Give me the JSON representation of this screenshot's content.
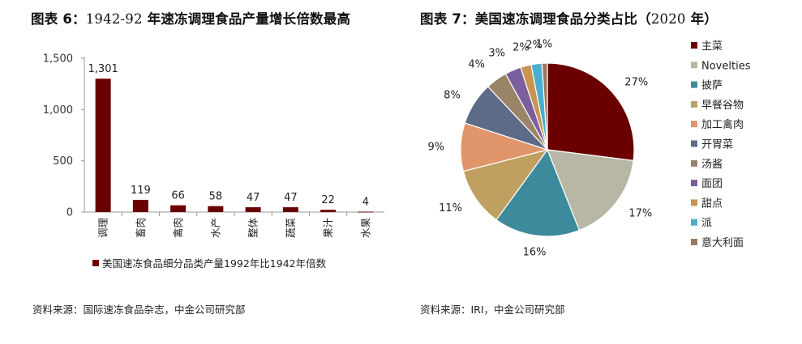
{
  "left": {
    "title_prefix": "图表 6：",
    "title_range": "1942-92",
    "title_text": " 年速冻调理食品产量增长倍数最高",
    "source": "资料来源：国际速冻食品杂志，中金公司研究部"
  },
  "right": {
    "title_prefix": "图表 7：",
    "title_text": "美国速冻调理食品分类占比（",
    "title_year": "2020",
    "title_suffix": " 年）",
    "source": "资料来源：IRI，中金公司研究部"
  },
  "chart_data": [
    {
      "type": "bar",
      "categories": [
        "调理",
        "畜肉",
        "禽肉",
        "水产",
        "整体",
        "蔬菜",
        "果汁",
        "水果"
      ],
      "series": [
        {
          "name": "美国速冻食品细分品类产量1992年比1942年倍数",
          "values": [
            1301,
            119,
            66,
            58,
            47,
            47,
            22,
            4
          ]
        }
      ],
      "data_labels": [
        "1,301",
        "119",
        "66",
        "58",
        "47",
        "47",
        "22",
        "4"
      ],
      "ylim": [
        0,
        1500
      ],
      "yticks": [
        0,
        500,
        1000,
        1500
      ],
      "ytick_labels": [
        "0",
        "500",
        "1,000",
        "1,500"
      ],
      "legend_position": "bottom",
      "bar_color": "#6b0000",
      "grid": false
    },
    {
      "type": "pie",
      "labels": [
        "主菜",
        "Novelties",
        "披萨",
        "早餐谷物",
        "加工禽肉",
        "开胃菜",
        "汤酱",
        "面团",
        "甜点",
        "派",
        "意大利面"
      ],
      "values": [
        27,
        17,
        16,
        11,
        9,
        8,
        4,
        3,
        2,
        2,
        1
      ],
      "value_labels": [
        "27%",
        "17%",
        "16%",
        "11%",
        "9%",
        "8%",
        "4%",
        "3%",
        "2%",
        "2%",
        "1%"
      ],
      "colors": [
        "#6b0000",
        "#b8b7a5",
        "#3c8a9c",
        "#c0a060",
        "#e0956a",
        "#5e6b86",
        "#9a8468",
        "#7a5f9e",
        "#c89450",
        "#4aaed0",
        "#9a7a5a"
      ],
      "legend_position": "right",
      "start_angle": "12 o'clock",
      "direction": "clockwise"
    }
  ]
}
